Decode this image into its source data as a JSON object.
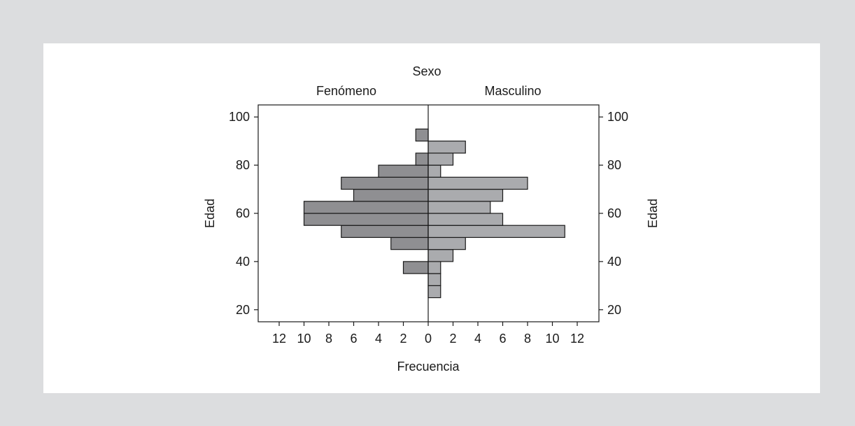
{
  "chart_data": {
    "type": "bar",
    "orientation": "horizontal-mirrored",
    "title": "Sexo",
    "xlabel": "Frecuencia",
    "ylabel": "Edad",
    "xlim": [
      0,
      13
    ],
    "ylim": [
      15,
      105
    ],
    "x_ticks": [
      12,
      10,
      8,
      6,
      4,
      2,
      0,
      2,
      4,
      6,
      8,
      10,
      12
    ],
    "y_ticks": [
      20,
      40,
      60,
      80,
      100
    ],
    "bin_width": 5,
    "series": [
      {
        "name": "Fenómeno",
        "side": "left",
        "color": "#8f8f92",
        "bins": [
          {
            "start": 35,
            "value": 2
          },
          {
            "start": 40,
            "value": 0
          },
          {
            "start": 45,
            "value": 3
          },
          {
            "start": 50,
            "value": 7
          },
          {
            "start": 55,
            "value": 10
          },
          {
            "start": 60,
            "value": 10
          },
          {
            "start": 65,
            "value": 6
          },
          {
            "start": 70,
            "value": 7
          },
          {
            "start": 75,
            "value": 4
          },
          {
            "start": 80,
            "value": 1
          },
          {
            "start": 85,
            "value": 0
          },
          {
            "start": 90,
            "value": 1
          }
        ]
      },
      {
        "name": "Masculino",
        "side": "right",
        "color": "#aaabae",
        "bins": [
          {
            "start": 25,
            "value": 1
          },
          {
            "start": 30,
            "value": 1
          },
          {
            "start": 35,
            "value": 1
          },
          {
            "start": 40,
            "value": 2
          },
          {
            "start": 45,
            "value": 3
          },
          {
            "start": 50,
            "value": 11
          },
          {
            "start": 55,
            "value": 6
          },
          {
            "start": 60,
            "value": 5
          },
          {
            "start": 65,
            "value": 6
          },
          {
            "start": 70,
            "value": 8
          },
          {
            "start": 75,
            "value": 1
          },
          {
            "start": 80,
            "value": 2
          },
          {
            "start": 85,
            "value": 3
          }
        ]
      }
    ],
    "grid": false,
    "legend": "panel headers above each side"
  },
  "colors": {
    "background": "#dcdddf",
    "panel": "#ffffff",
    "stroke": "#1a1a1a"
  }
}
